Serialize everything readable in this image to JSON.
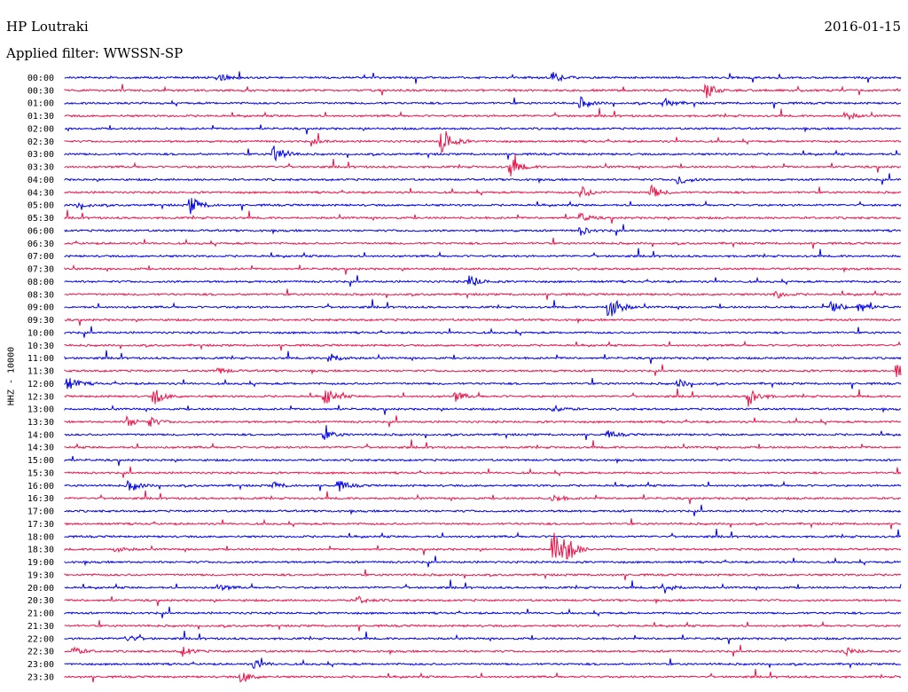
{
  "header": {
    "station": "HP Loutraki",
    "date": "2016-01-15",
    "filter_label": "Applied filter: WWSSN-SP",
    "channel_label": "HHZ - 10000"
  },
  "colors": {
    "even_row": "#0000e6",
    "odd_row": "#e8144a"
  },
  "chart_data": {
    "type": "line",
    "title": "HP Loutraki",
    "subtitle": "Applied filter: WWSSN-SP",
    "ylabel": "HHZ - 10000",
    "row_labels": [
      "00:00",
      "00:30",
      "01:00",
      "01:30",
      "02:00",
      "02:30",
      "03:00",
      "03:30",
      "04:00",
      "04:30",
      "05:00",
      "05:30",
      "06:00",
      "06:30",
      "07:00",
      "07:30",
      "08:00",
      "08:30",
      "09:00",
      "09:30",
      "10:00",
      "10:30",
      "11:00",
      "11:30",
      "12:00",
      "12:30",
      "13:00",
      "13:30",
      "14:00",
      "14:30",
      "15:00",
      "15:30",
      "16:00",
      "16:30",
      "17:00",
      "17:30",
      "18:00",
      "18:30",
      "19:00",
      "19:30",
      "20:00",
      "20:30",
      "21:00",
      "21:30",
      "22:00",
      "22:30",
      "23:00",
      "23:30"
    ],
    "row_minutes": 30,
    "grid": false,
    "events": [
      {
        "row": 0,
        "minute": 5.5,
        "amp": 5
      },
      {
        "row": 0,
        "minute": 17.5,
        "amp": 6
      },
      {
        "row": 1,
        "minute": 23,
        "amp": 9
      },
      {
        "row": 2,
        "minute": 18.5,
        "amp": 7
      },
      {
        "row": 2,
        "minute": 21.5,
        "amp": 6
      },
      {
        "row": 3,
        "minute": 28,
        "amp": 5
      },
      {
        "row": 5,
        "minute": 13.5,
        "amp": 20
      },
      {
        "row": 5,
        "minute": 9,
        "amp": 3
      },
      {
        "row": 6,
        "minute": 7.5,
        "amp": 14
      },
      {
        "row": 7,
        "minute": 16,
        "amp": 11
      },
      {
        "row": 8,
        "minute": 22,
        "amp": 7
      },
      {
        "row": 9,
        "minute": 21,
        "amp": 9
      },
      {
        "row": 9,
        "minute": 18.5,
        "amp": 8
      },
      {
        "row": 10,
        "minute": 4.5,
        "amp": 11
      },
      {
        "row": 10,
        "minute": 0.5,
        "amp": 4
      },
      {
        "row": 11,
        "minute": 18.5,
        "amp": 5
      },
      {
        "row": 12,
        "minute": 18.5,
        "amp": 5
      },
      {
        "row": 16,
        "minute": 14.5,
        "amp": 9
      },
      {
        "row": 17,
        "minute": 25.5,
        "amp": 5
      },
      {
        "row": 18,
        "minute": 19.5,
        "amp": 20
      },
      {
        "row": 18,
        "minute": 27.5,
        "amp": 9
      },
      {
        "row": 18,
        "minute": 28.5,
        "amp": 7
      },
      {
        "row": 22,
        "minute": 9.5,
        "amp": 7
      },
      {
        "row": 23,
        "minute": 5.5,
        "amp": 4
      },
      {
        "row": 23,
        "minute": 29.8,
        "amp": 10
      },
      {
        "row": 24,
        "minute": 0.1,
        "amp": 9
      },
      {
        "row": 24,
        "minute": 22,
        "amp": 5
      },
      {
        "row": 25,
        "minute": 3.2,
        "amp": 10
      },
      {
        "row": 25,
        "minute": 9.3,
        "amp": 12
      },
      {
        "row": 25,
        "minute": 14,
        "amp": 6
      },
      {
        "row": 25,
        "minute": 24.5,
        "amp": 14
      },
      {
        "row": 26,
        "minute": 17.5,
        "amp": 5
      },
      {
        "row": 27,
        "minute": 2.2,
        "amp": 7
      },
      {
        "row": 27,
        "minute": 3.0,
        "amp": 6
      },
      {
        "row": 28,
        "minute": 9.3,
        "amp": 6
      },
      {
        "row": 28,
        "minute": 19.5,
        "amp": 4
      },
      {
        "row": 32,
        "minute": 2.3,
        "amp": 8
      },
      {
        "row": 32,
        "minute": 9.8,
        "amp": 7
      },
      {
        "row": 32,
        "minute": 7.5,
        "amp": 4
      },
      {
        "row": 33,
        "minute": 17.5,
        "amp": 5
      },
      {
        "row": 37,
        "minute": 1.8,
        "amp": 4
      },
      {
        "row": 37,
        "minute": 17.5,
        "amp": 22
      },
      {
        "row": 37,
        "minute": 17.9,
        "amp": 20
      },
      {
        "row": 40,
        "minute": 5.5,
        "amp": 4
      },
      {
        "row": 40,
        "minute": 21.5,
        "amp": 7
      },
      {
        "row": 41,
        "minute": 10.5,
        "amp": 5
      },
      {
        "row": 44,
        "minute": 2.2,
        "amp": 5
      },
      {
        "row": 45,
        "minute": 0.3,
        "amp": 5
      },
      {
        "row": 45,
        "minute": 4.2,
        "amp": 6
      },
      {
        "row": 45,
        "minute": 28,
        "amp": 5
      },
      {
        "row": 46,
        "minute": 6.8,
        "amp": 6
      },
      {
        "row": 47,
        "minute": 6.3,
        "amp": 8
      }
    ]
  }
}
